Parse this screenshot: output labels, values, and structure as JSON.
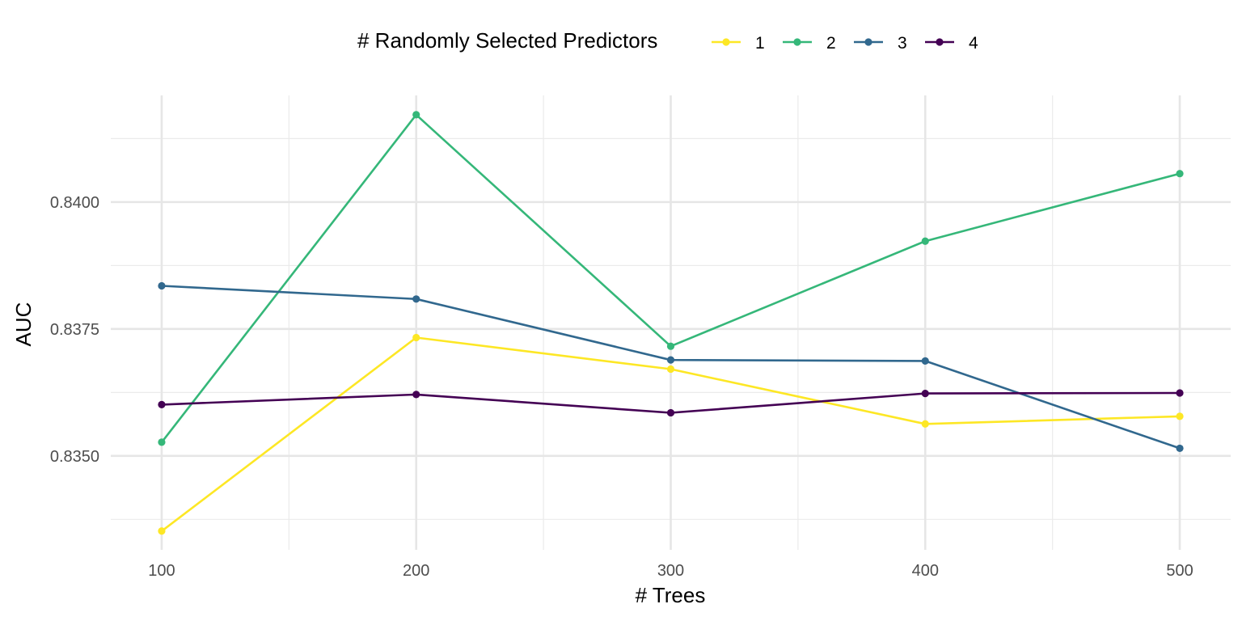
{
  "chart_data": {
    "type": "line",
    "xlabel": "# Trees",
    "ylabel": "AUC",
    "x": [
      100,
      200,
      300,
      400,
      500
    ],
    "xlim": [
      80,
      520
    ],
    "ylim": [
      0.83315,
      0.8421
    ],
    "x_ticks": [
      {
        "value": 100,
        "label": "100"
      },
      {
        "value": 200,
        "label": "200"
      },
      {
        "value": 300,
        "label": "300"
      },
      {
        "value": 400,
        "label": "400"
      },
      {
        "value": 500,
        "label": "500"
      }
    ],
    "y_ticks": [
      {
        "value": 0.835,
        "label": "0.8350"
      },
      {
        "value": 0.8375,
        "label": "0.8375"
      },
      {
        "value": 0.84,
        "label": "0.8400"
      }
    ],
    "x_minor": [
      150,
      250,
      350,
      450
    ],
    "y_minor": [
      0.83375,
      0.83625,
      0.83875,
      0.84125
    ],
    "grid": true,
    "legend": {
      "title": "# Randomly Selected Predictors",
      "position": "top"
    },
    "series": [
      {
        "name": "1",
        "color": "#FDE725",
        "values": [
          0.83352,
          0.83733,
          0.83671,
          0.83563,
          0.83578
        ]
      },
      {
        "name": "2",
        "color": "#35B779",
        "values": [
          0.83527,
          0.84172,
          0.83716,
          0.83923,
          0.84056
        ]
      },
      {
        "name": "3",
        "color": "#31688E",
        "values": [
          0.83835,
          0.83809,
          0.83689,
          0.83687,
          0.83515
        ]
      },
      {
        "name": "4",
        "color": "#440154",
        "values": [
          0.83601,
          0.83621,
          0.83585,
          0.83623,
          0.83624
        ]
      }
    ]
  }
}
